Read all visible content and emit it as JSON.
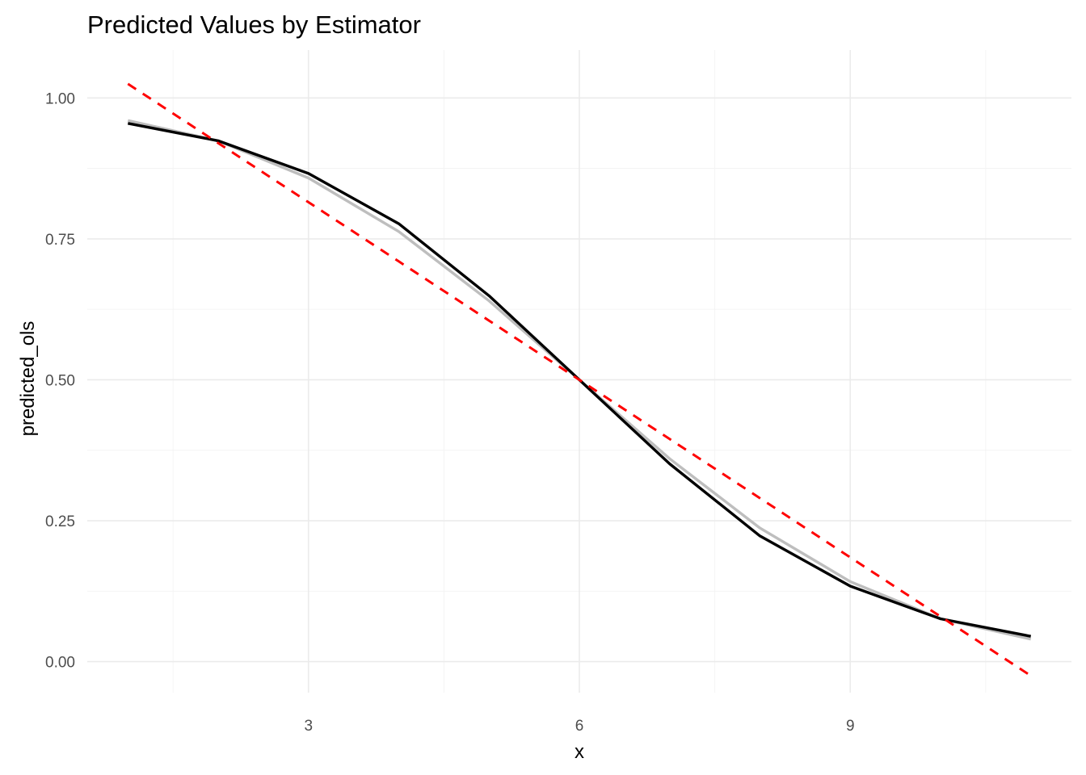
{
  "chart_data": {
    "type": "line",
    "title": "Predicted Values by Estimator",
    "xlabel": "x",
    "ylabel": "predicted_ols",
    "xlim": [
      0.55,
      11.45
    ],
    "ylim": [
      -0.055,
      1.085
    ],
    "x_ticks": [
      3,
      6,
      9
    ],
    "x_tick_labels": [
      "3",
      "6",
      "9"
    ],
    "x_minor_ticks": [
      1.5,
      4.5,
      7.5,
      10.5
    ],
    "y_ticks": [
      0,
      0.25,
      0.5,
      0.75,
      1.0
    ],
    "y_tick_labels": [
      "0.00",
      "0.25",
      "0.50",
      "0.75",
      "1.00"
    ],
    "y_minor_ticks": [
      0.125,
      0.375,
      0.625,
      0.875
    ],
    "grid": true,
    "legend": "none",
    "x": [
      1,
      2,
      3,
      4,
      5,
      6,
      7,
      8,
      9,
      10,
      11
    ],
    "series": [
      {
        "color": "#bebebe",
        "dash": "solid",
        "values": [
          0.96,
          0.924,
          0.858,
          0.763,
          0.64,
          0.5,
          0.36,
          0.237,
          0.142,
          0.076,
          0.04
        ]
      },
      {
        "color": "#000000",
        "dash": "solid",
        "values": [
          0.955,
          0.924,
          0.866,
          0.777,
          0.649,
          0.5,
          0.351,
          0.223,
          0.134,
          0.076,
          0.045
        ]
      },
      {
        "color": "#ff0000",
        "dash": "dashed",
        "values": [
          1.025,
          0.92,
          0.815,
          0.71,
          0.605,
          0.5,
          0.395,
          0.29,
          0.185,
          0.08,
          -0.025
        ]
      }
    ]
  }
}
